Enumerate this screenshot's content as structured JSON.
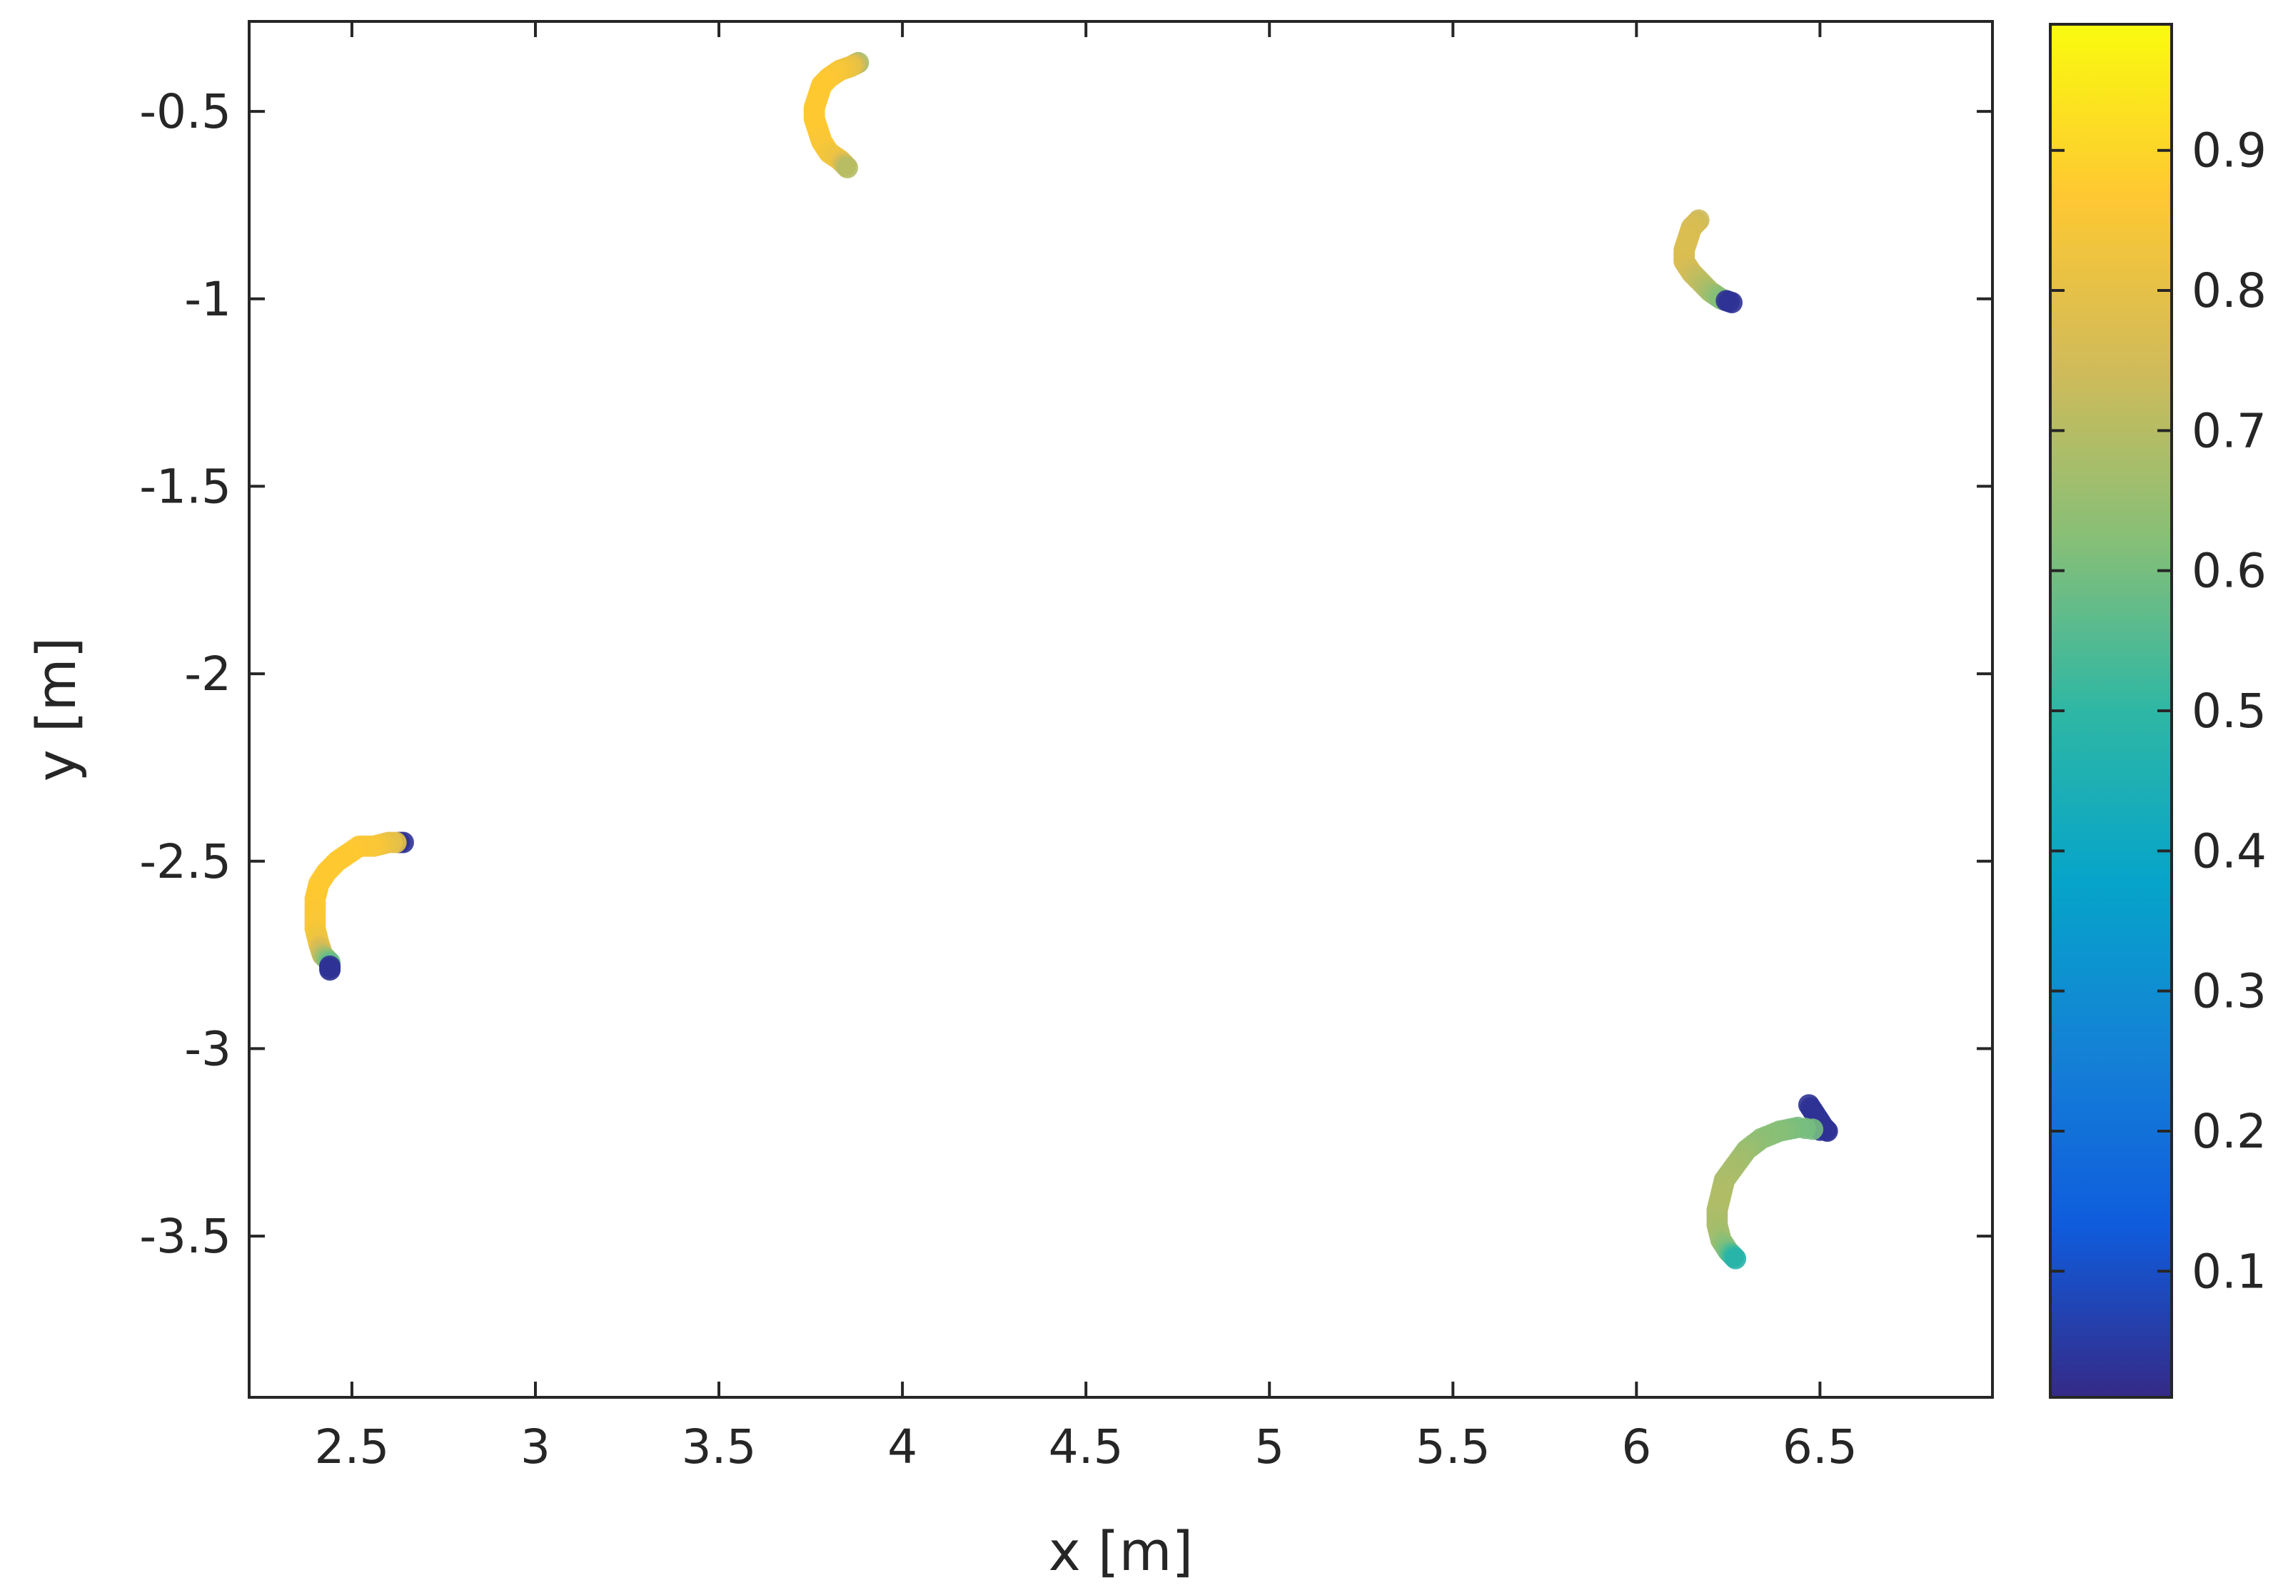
{
  "chart_data": {
    "type": "scatter",
    "title": "",
    "xlabel": "x [m]",
    "ylabel": "y [m]",
    "xlim": [
      2.22,
      6.97
    ],
    "ylim": [
      -3.93,
      -0.26
    ],
    "xticks": [
      2.5,
      3,
      3.5,
      4,
      4.5,
      5,
      5.5,
      6,
      6.5
    ],
    "xtick_labels": [
      "2.5",
      "3",
      "3.5",
      "4",
      "4.5",
      "5",
      "5.5",
      "6",
      "6.5"
    ],
    "yticks": [
      -0.5,
      -1,
      -1.5,
      -2,
      -2.5,
      -3,
      -3.5
    ],
    "ytick_labels": [
      "-0.5",
      "-1",
      "-1.5",
      "-2",
      "-2.5",
      "-3",
      "-3.5"
    ],
    "grid": false,
    "box": true,
    "colorbar": {
      "colormap": "parula",
      "range": [
        0.01,
        0.99
      ],
      "ticks": [
        0.1,
        0.2,
        0.3,
        0.4,
        0.5,
        0.6,
        0.7,
        0.8,
        0.9
      ],
      "tick_labels": [
        "0.1",
        "0.2",
        "0.3",
        "0.4",
        "0.5",
        "0.6",
        "0.7",
        "0.8",
        "0.9"
      ]
    },
    "series": [
      {
        "points": [
          [
            3.88,
            -0.37,
            0.68
          ],
          [
            3.86,
            -0.38,
            0.8
          ],
          [
            3.83,
            -0.39,
            0.84
          ],
          [
            3.8,
            -0.41,
            0.86
          ],
          [
            3.78,
            -0.43,
            0.87
          ],
          [
            3.77,
            -0.46,
            0.87
          ],
          [
            3.76,
            -0.49,
            0.87
          ],
          [
            3.76,
            -0.52,
            0.87
          ],
          [
            3.77,
            -0.55,
            0.87
          ],
          [
            3.78,
            -0.58,
            0.86
          ],
          [
            3.8,
            -0.61,
            0.84
          ],
          [
            3.83,
            -0.63,
            0.82
          ],
          [
            3.85,
            -0.65,
            0.7
          ]
        ]
      },
      {
        "points": [
          [
            6.17,
            -0.79,
            0.74
          ],
          [
            6.15,
            -0.81,
            0.76
          ],
          [
            6.14,
            -0.84,
            0.77
          ],
          [
            6.13,
            -0.87,
            0.77
          ],
          [
            6.13,
            -0.9,
            0.77
          ],
          [
            6.15,
            -0.93,
            0.75
          ],
          [
            6.17,
            -0.95,
            0.72
          ],
          [
            6.2,
            -0.98,
            0.68
          ],
          [
            6.23,
            -1.0,
            0.62
          ],
          [
            6.26,
            -1.01,
            0.03
          ]
        ]
      },
      {
        "points": [
          [
            2.64,
            -2.45,
            0.03
          ],
          [
            2.6,
            -2.45,
            0.8
          ],
          [
            2.56,
            -2.46,
            0.85
          ],
          [
            2.52,
            -2.46,
            0.86
          ],
          [
            2.49,
            -2.48,
            0.87
          ],
          [
            2.46,
            -2.5,
            0.87
          ],
          [
            2.43,
            -2.53,
            0.87
          ],
          [
            2.41,
            -2.56,
            0.87
          ],
          [
            2.4,
            -2.6,
            0.87
          ],
          [
            2.4,
            -2.64,
            0.86
          ],
          [
            2.4,
            -2.68,
            0.85
          ],
          [
            2.41,
            -2.72,
            0.82
          ],
          [
            2.42,
            -2.75,
            0.72
          ],
          [
            2.44,
            -2.77,
            0.58
          ],
          [
            2.44,
            -2.79,
            0.03
          ]
        ]
      },
      {
        "points": [
          [
            6.47,
            -3.15,
            0.03
          ],
          [
            6.49,
            -3.18,
            0.03
          ],
          [
            6.51,
            -3.21,
            0.03
          ],
          [
            6.52,
            -3.22,
            0.03
          ],
          [
            6.44,
            -3.21,
            0.6
          ],
          [
            6.39,
            -3.22,
            0.62
          ],
          [
            6.34,
            -3.24,
            0.63
          ],
          [
            6.3,
            -3.27,
            0.65
          ],
          [
            6.27,
            -3.31,
            0.67
          ],
          [
            6.24,
            -3.35,
            0.68
          ],
          [
            6.23,
            -3.39,
            0.69
          ],
          [
            6.22,
            -3.43,
            0.69
          ],
          [
            6.22,
            -3.47,
            0.68
          ],
          [
            6.23,
            -3.51,
            0.66
          ],
          [
            6.25,
            -3.54,
            0.6
          ],
          [
            6.27,
            -3.56,
            0.48
          ]
        ]
      }
    ]
  }
}
